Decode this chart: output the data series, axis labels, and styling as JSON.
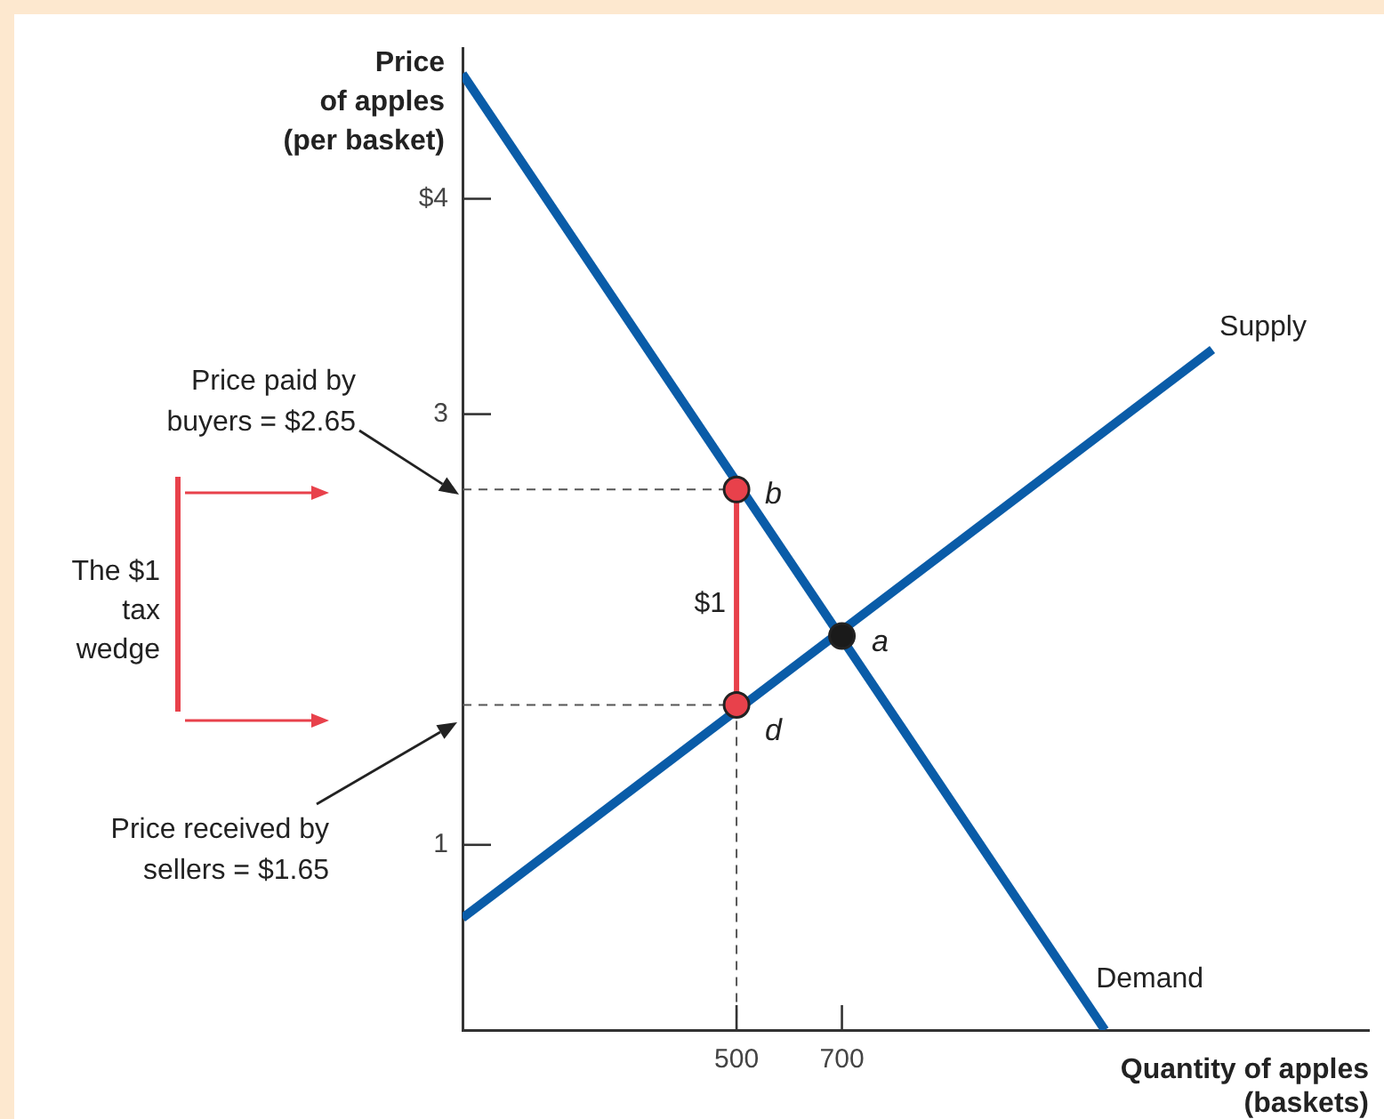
{
  "chart_data": {
    "type": "line",
    "xlabel": "Quantity of apples\n(baskets)",
    "ylabel": "Price\nof apples\n(per basket)",
    "xlim": [
      -20,
      1700
    ],
    "ylim": [
      0.14,
      4.7
    ],
    "xticks": [
      500,
      700
    ],
    "yticks": [
      1,
      3,
      {
        "value": 4,
        "label": "$4"
      }
    ],
    "grid": false,
    "legend": false,
    "series": [
      {
        "name": "Demand",
        "type": "line",
        "color": "#0a5ca8",
        "x": [
          -20,
          1199
        ],
        "values": [
          4.58,
          0.14
        ],
        "marker": "none",
        "line_style": "solid"
      },
      {
        "name": "Supply",
        "type": "line",
        "color": "#0a5ca8",
        "x": [
          -20,
          1403
        ],
        "values": [
          0.66,
          3.3
        ],
        "marker": "none",
        "line_style": "solid"
      },
      {
        "type": "line",
        "color": "#555555",
        "x": [
          -20,
          500
        ],
        "values": [
          2.65,
          2.65
        ],
        "marker": "none",
        "line_style": "dashed"
      },
      {
        "type": "line",
        "color": "#555555",
        "x": [
          -20,
          500
        ],
        "values": [
          1.65,
          1.65
        ],
        "marker": "none",
        "line_style": "dashed"
      },
      {
        "type": "line",
        "color": "#555555",
        "x": [
          500,
          500
        ],
        "values": [
          1.65,
          0.14
        ],
        "marker": "none",
        "line_style": "dashed"
      },
      {
        "type": "line",
        "color": "#e8414b",
        "x": [
          500,
          500
        ],
        "values": [
          1.65,
          2.65
        ],
        "marker": "none",
        "line_style": "solid"
      },
      {
        "type": "scatter",
        "color": "#e8414b",
        "x": [
          500,
          500
        ],
        "values": [
          2.65,
          1.65
        ],
        "marker": "circle"
      },
      {
        "type": "scatter",
        "color": "#1a1a1a",
        "x": [
          700
        ],
        "values": [
          1.97
        ],
        "marker": "circle"
      }
    ],
    "annotations": [
      "Price paid by\nbuyers = $2.65",
      "Price received by\nsellers = $1.65",
      "The $1\ntax\nwedge",
      "$1",
      "b",
      "d",
      "a"
    ]
  }
}
